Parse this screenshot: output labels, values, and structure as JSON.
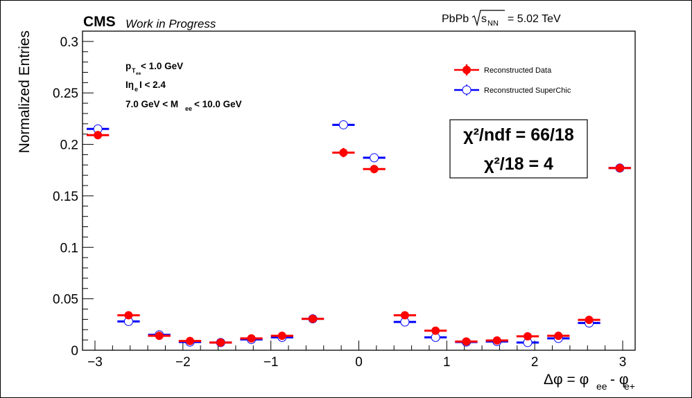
{
  "header": {
    "experiment": "CMS",
    "status": "Work in Progress",
    "system": "PbPb",
    "energy_symbol": "s",
    "energy_subscript": "NN",
    "energy_value": "= 5.02 TeV"
  },
  "cuts": [
    {
      "pre": "p",
      "sub": "T",
      "subsub": "ee",
      "post": " < 1.0 GeV"
    },
    {
      "pre": "Iη",
      "sub": "e",
      "subsub": "",
      "post": "I < 2.4"
    },
    {
      "pre": "7.0 GeV < M",
      "sub": "ee",
      "subsub": "",
      "post": " < 10.0 GeV"
    }
  ],
  "chi2": {
    "line1": "χ²/ndf = 66/18",
    "line2": "χ²/18 = 4"
  },
  "colors": {
    "data": "#ff0000",
    "superchic": "#0000ff"
  },
  "chart_data": {
    "type": "scatter",
    "xlabel": {
      "main": "Δφ = φ",
      "sub1": "ee",
      "mid": " - φ",
      "sub2": "e+"
    },
    "ylabel": "Normalized Entries",
    "xlim": [
      -3.1416,
      3.1416
    ],
    "ylim": [
      0,
      0.31
    ],
    "x_ticks": [
      -3,
      -2,
      -1,
      0,
      1,
      2,
      3
    ],
    "x_tick_labels": [
      "−3",
      "−2",
      "−1",
      "0",
      "1",
      "2",
      "3"
    ],
    "y_ticks": [
      0,
      0.05,
      0.1,
      0.15,
      0.2,
      0.25,
      0.3
    ],
    "y_tick_labels": [
      "0",
      "0.05",
      "0.1",
      "0.15",
      "0.2",
      "0.25",
      "0.3"
    ],
    "bin_edges": [
      -3.1416,
      -2.7925,
      -2.4435,
      -2.0944,
      -1.7453,
      -1.3963,
      -1.0472,
      -0.6981,
      -0.3491,
      0.0,
      0.3491,
      0.6981,
      1.0472,
      1.3963,
      1.7453,
      2.0944,
      2.4435,
      2.7925,
      3.1416
    ],
    "series": [
      {
        "name": "Reconstructed Data",
        "marker": "filled-circle",
        "values": [
          0.209,
          0.034,
          0.014,
          0.009,
          0.0075,
          0.0115,
          0.014,
          0.0305,
          0.192,
          0.176,
          0.034,
          0.019,
          0.0085,
          0.0095,
          0.0135,
          0.014,
          0.0295,
          0.177
        ],
        "errors": [
          0.004,
          0.0015,
          0.001,
          0.001,
          0.001,
          0.001,
          0.001,
          0.0015,
          0.0045,
          0.004,
          0.0015,
          0.001,
          0.001,
          0.001,
          0.001,
          0.001,
          0.0015,
          0.004
        ]
      },
      {
        "name": "Reconstructed SuperChic",
        "marker": "open-circle",
        "values": [
          0.215,
          0.028,
          0.015,
          0.008,
          0.0075,
          0.0105,
          0.0125,
          0.0305,
          0.219,
          0.187,
          0.0275,
          0.0125,
          0.008,
          0.0085,
          0.0075,
          0.0115,
          0.0265,
          0.177
        ],
        "errors": [
          0.001,
          0.0005,
          0.0003,
          0.0002,
          0.0002,
          0.0002,
          0.0003,
          0.0005,
          0.001,
          0.001,
          0.0005,
          0.0003,
          0.0002,
          0.0002,
          0.0002,
          0.0003,
          0.0005,
          0.001
        ]
      }
    ],
    "legend": {
      "placement": "top-right"
    },
    "grid": false
  }
}
